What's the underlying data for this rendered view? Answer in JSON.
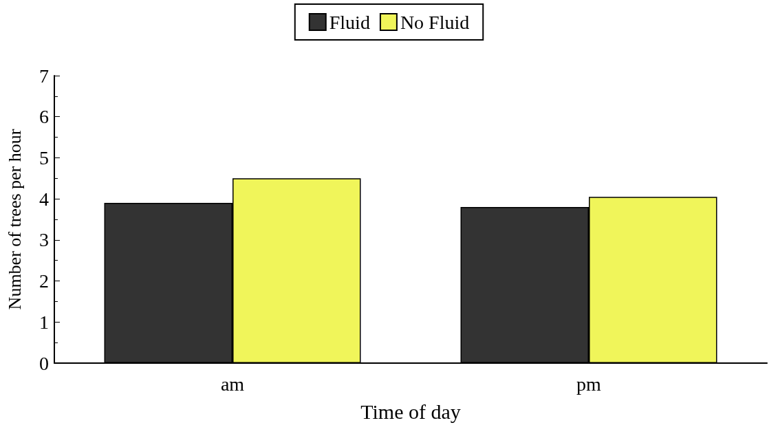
{
  "chart_data": {
    "type": "bar",
    "xlabel": "Time of day",
    "ylabel": "Number of trees per hour",
    "categories": [
      "am",
      "pm"
    ],
    "series": [
      {
        "name": "Fluid",
        "color": "#333333",
        "values": [
          3.9,
          3.8
        ]
      },
      {
        "name": "No Fluid",
        "color": "#f0f55a",
        "values": [
          4.5,
          4.05
        ]
      }
    ],
    "ylim": [
      0,
      7
    ],
    "yticks": [
      0,
      1,
      2,
      3,
      4,
      5,
      6,
      7
    ],
    "grid": false,
    "legend": "top"
  }
}
